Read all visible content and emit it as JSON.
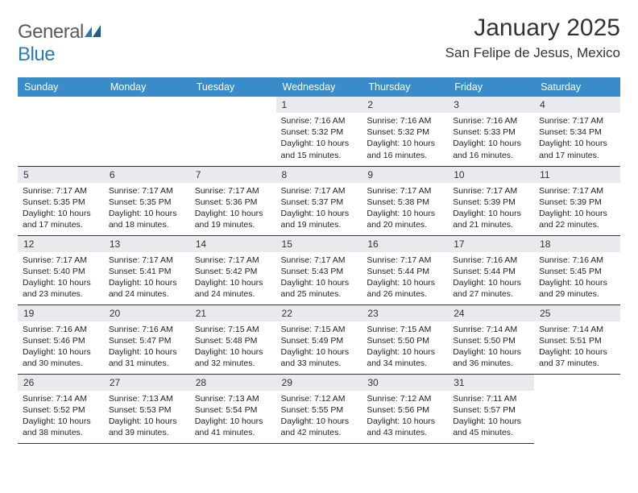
{
  "brand": {
    "part1": "General",
    "part2": "Blue"
  },
  "title": "January 2025",
  "location": "San Felipe de Jesus, Mexico",
  "colors": {
    "header_bg": "#3a8bc9",
    "header_text": "#ffffff",
    "daynum_bg": "#e8eaed",
    "text": "#222222",
    "border": "#333333",
    "brand_gray": "#5a5a5a",
    "brand_blue": "#2a7ab9"
  },
  "weekdays": [
    "Sunday",
    "Monday",
    "Tuesday",
    "Wednesday",
    "Thursday",
    "Friday",
    "Saturday"
  ],
  "first_day_index": 3,
  "days": [
    {
      "n": 1,
      "sr": "7:16 AM",
      "ss": "5:32 PM",
      "dl": "10 hours and 15 minutes."
    },
    {
      "n": 2,
      "sr": "7:16 AM",
      "ss": "5:32 PM",
      "dl": "10 hours and 16 minutes."
    },
    {
      "n": 3,
      "sr": "7:16 AM",
      "ss": "5:33 PM",
      "dl": "10 hours and 16 minutes."
    },
    {
      "n": 4,
      "sr": "7:17 AM",
      "ss": "5:34 PM",
      "dl": "10 hours and 17 minutes."
    },
    {
      "n": 5,
      "sr": "7:17 AM",
      "ss": "5:35 PM",
      "dl": "10 hours and 17 minutes."
    },
    {
      "n": 6,
      "sr": "7:17 AM",
      "ss": "5:35 PM",
      "dl": "10 hours and 18 minutes."
    },
    {
      "n": 7,
      "sr": "7:17 AM",
      "ss": "5:36 PM",
      "dl": "10 hours and 19 minutes."
    },
    {
      "n": 8,
      "sr": "7:17 AM",
      "ss": "5:37 PM",
      "dl": "10 hours and 19 minutes."
    },
    {
      "n": 9,
      "sr": "7:17 AM",
      "ss": "5:38 PM",
      "dl": "10 hours and 20 minutes."
    },
    {
      "n": 10,
      "sr": "7:17 AM",
      "ss": "5:39 PM",
      "dl": "10 hours and 21 minutes."
    },
    {
      "n": 11,
      "sr": "7:17 AM",
      "ss": "5:39 PM",
      "dl": "10 hours and 22 minutes."
    },
    {
      "n": 12,
      "sr": "7:17 AM",
      "ss": "5:40 PM",
      "dl": "10 hours and 23 minutes."
    },
    {
      "n": 13,
      "sr": "7:17 AM",
      "ss": "5:41 PM",
      "dl": "10 hours and 24 minutes."
    },
    {
      "n": 14,
      "sr": "7:17 AM",
      "ss": "5:42 PM",
      "dl": "10 hours and 24 minutes."
    },
    {
      "n": 15,
      "sr": "7:17 AM",
      "ss": "5:43 PM",
      "dl": "10 hours and 25 minutes."
    },
    {
      "n": 16,
      "sr": "7:17 AM",
      "ss": "5:44 PM",
      "dl": "10 hours and 26 minutes."
    },
    {
      "n": 17,
      "sr": "7:16 AM",
      "ss": "5:44 PM",
      "dl": "10 hours and 27 minutes."
    },
    {
      "n": 18,
      "sr": "7:16 AM",
      "ss": "5:45 PM",
      "dl": "10 hours and 29 minutes."
    },
    {
      "n": 19,
      "sr": "7:16 AM",
      "ss": "5:46 PM",
      "dl": "10 hours and 30 minutes."
    },
    {
      "n": 20,
      "sr": "7:16 AM",
      "ss": "5:47 PM",
      "dl": "10 hours and 31 minutes."
    },
    {
      "n": 21,
      "sr": "7:15 AM",
      "ss": "5:48 PM",
      "dl": "10 hours and 32 minutes."
    },
    {
      "n": 22,
      "sr": "7:15 AM",
      "ss": "5:49 PM",
      "dl": "10 hours and 33 minutes."
    },
    {
      "n": 23,
      "sr": "7:15 AM",
      "ss": "5:50 PM",
      "dl": "10 hours and 34 minutes."
    },
    {
      "n": 24,
      "sr": "7:14 AM",
      "ss": "5:50 PM",
      "dl": "10 hours and 36 minutes."
    },
    {
      "n": 25,
      "sr": "7:14 AM",
      "ss": "5:51 PM",
      "dl": "10 hours and 37 minutes."
    },
    {
      "n": 26,
      "sr": "7:14 AM",
      "ss": "5:52 PM",
      "dl": "10 hours and 38 minutes."
    },
    {
      "n": 27,
      "sr": "7:13 AM",
      "ss": "5:53 PM",
      "dl": "10 hours and 39 minutes."
    },
    {
      "n": 28,
      "sr": "7:13 AM",
      "ss": "5:54 PM",
      "dl": "10 hours and 41 minutes."
    },
    {
      "n": 29,
      "sr": "7:12 AM",
      "ss": "5:55 PM",
      "dl": "10 hours and 42 minutes."
    },
    {
      "n": 30,
      "sr": "7:12 AM",
      "ss": "5:56 PM",
      "dl": "10 hours and 43 minutes."
    },
    {
      "n": 31,
      "sr": "7:11 AM",
      "ss": "5:57 PM",
      "dl": "10 hours and 45 minutes."
    }
  ],
  "labels": {
    "sunrise": "Sunrise:",
    "sunset": "Sunset:",
    "daylight": "Daylight:"
  }
}
